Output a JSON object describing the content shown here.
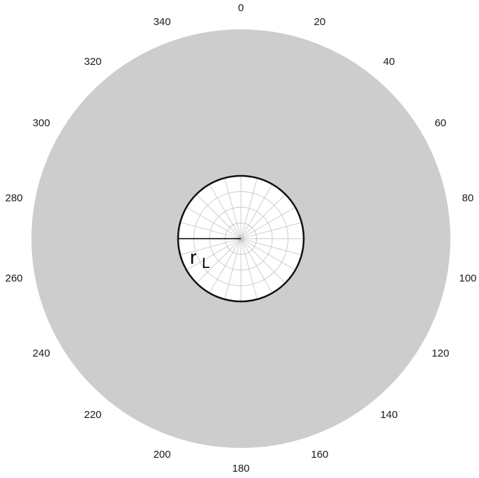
{
  "colors": {
    "outer_disk": "#cccdcc",
    "inner_disk": "#ffffff",
    "grid": "#c8c8c8",
    "boundary": "#111111"
  },
  "angle_labels": [
    "0",
    "20",
    "40",
    "60",
    "80",
    "100",
    "120",
    "140",
    "160",
    "180",
    "200",
    "220",
    "240",
    "260",
    "280",
    "300",
    "320",
    "340"
  ],
  "radius_label": {
    "main": "r",
    "subscript": "L"
  },
  "grid": {
    "spokes_degrees_step": 15,
    "rings": 3
  }
}
